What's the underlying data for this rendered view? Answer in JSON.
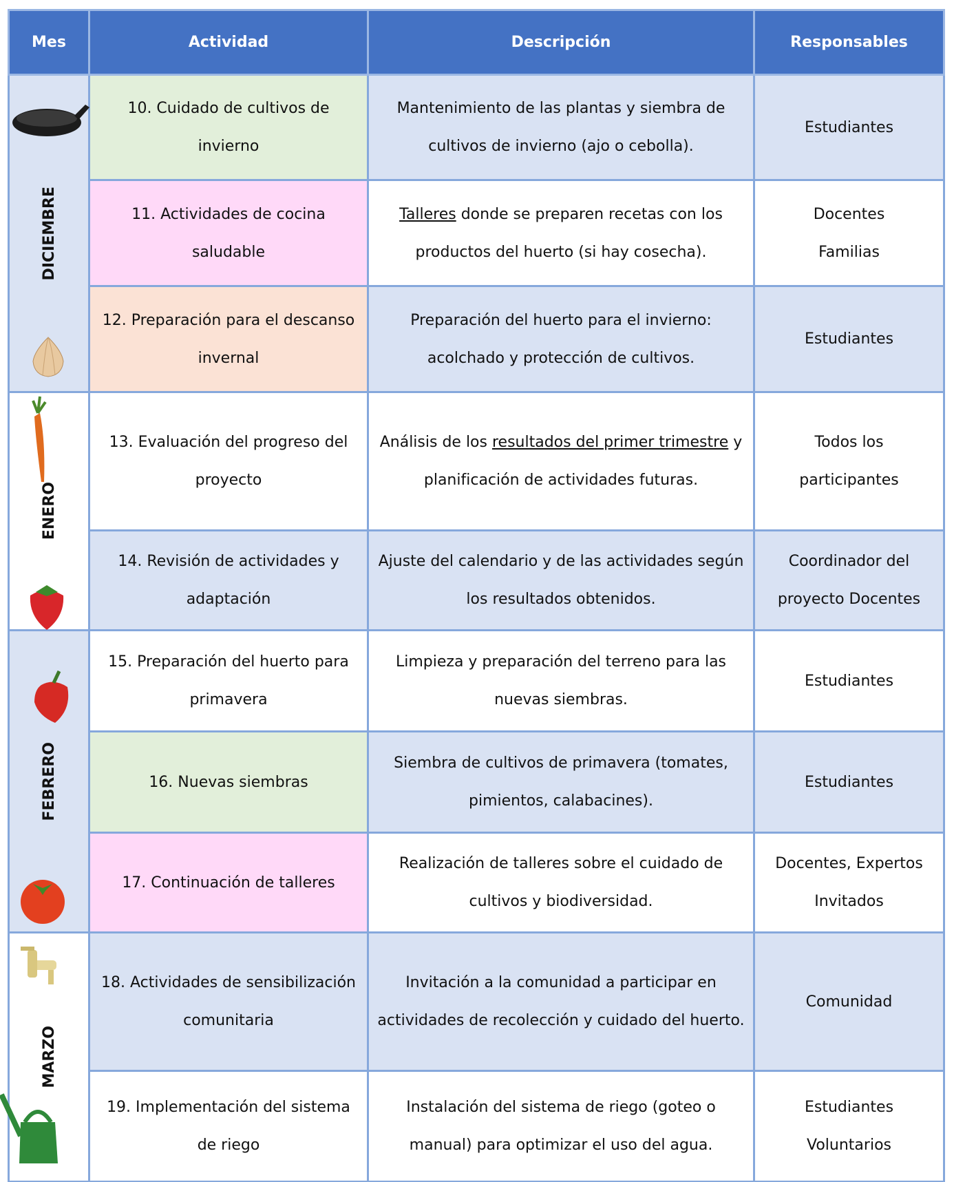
{
  "table": {
    "header": [
      "Mes",
      "Actividad",
      "Descripción",
      "Responsables"
    ],
    "months": [
      {
        "label": "DICIEMBRE",
        "rows": 3,
        "color": "#dae3f3"
      },
      {
        "label": "ENERO",
        "rows": 2,
        "color": "#ffffff"
      },
      {
        "label": "FEBRERO",
        "rows": 3,
        "color": "#dae3f3"
      },
      {
        "label": "MARZO",
        "rows": 2,
        "color": "#ffffff"
      }
    ],
    "rows": [
      {
        "activity": "10. Cuidado de cultivos de invierno",
        "activity_color": "#e2efda",
        "row_color": "#d9e2f3",
        "description": [
          {
            "text": "Mantenimiento de las plantas y siembra de cultivos de invierno (ajo o cebolla)."
          }
        ],
        "responsables": [
          "Estudiantes"
        ]
      },
      {
        "activity": "11. Actividades de cocina saludable",
        "activity_color": "#ffd9f8",
        "row_color": "#ffffff",
        "description": [
          {
            "text": "Talleres",
            "underline": true
          },
          {
            "text": " donde se preparen recetas con los productos del huerto (si hay cosecha)."
          }
        ],
        "responsables": [
          "Docentes",
          "Familias"
        ]
      },
      {
        "activity": "12. Preparación para el descanso invernal",
        "activity_color": "#fbe2d5",
        "row_color": "#d9e2f3",
        "description": [
          {
            "text": "Preparación del huerto para el invierno: acolchado y protección de cultivos."
          }
        ],
        "responsables": [
          "Estudiantes"
        ]
      },
      {
        "activity": "13. Evaluación del progreso del proyecto",
        "activity_color": "#ffffff",
        "row_color": "#ffffff",
        "description": [
          {
            "text": "Análisis de los "
          },
          {
            "text": "resultados del primer trimestre",
            "underline": true
          },
          {
            "text": " y planificación de actividades futuras."
          }
        ],
        "responsables": [
          "Todos los participantes"
        ]
      },
      {
        "activity": "14. Revisión de actividades y adaptación",
        "activity_color": "#d9e2f3",
        "row_color": "#d9e2f3",
        "description": [
          {
            "text": "Ajuste del calendario y de las actividades según los resultados obtenidos."
          }
        ],
        "responsables": [
          "Coordinador del proyecto Docentes"
        ]
      },
      {
        "activity": "15. Preparación del huerto para primavera",
        "activity_color": "#ffffff",
        "row_color": "#ffffff",
        "description": [
          {
            "text": "Limpieza y preparación del terreno para las nuevas siembras."
          }
        ],
        "responsables": [
          "Estudiantes"
        ]
      },
      {
        "activity": "16. Nuevas siembras",
        "activity_color": "#e2efda",
        "row_color": "#d9e2f3",
        "description": [
          {
            "text": "Siembra de cultivos de primavera (tomates, pimientos, calabacines)."
          }
        ],
        "responsables": [
          "Estudiantes"
        ]
      },
      {
        "activity": "17. Continuación de talleres",
        "activity_color": "#ffd9f8",
        "row_color": "#ffffff",
        "description": [
          {
            "text": "Realización de talleres sobre el cuidado de cultivos y biodiversidad."
          }
        ],
        "responsables": [
          "Docentes, Expertos Invitados"
        ]
      },
      {
        "activity": "18. Actividades de sensibilización comunitaria",
        "activity_color": "#d9e2f3",
        "row_color": "#d9e2f3",
        "description": [
          {
            "text": "Invitación a la comunidad a participar en actividades de recolección y cuidado del huerto."
          }
        ],
        "responsables": [
          "Comunidad"
        ]
      },
      {
        "activity": "19. Implementación del sistema de riego",
        "activity_color": "#ffffff",
        "row_color": "#ffffff",
        "description": [
          {
            "text": "Instalación del sistema de riego (goteo o manual) para optimizar el uso del agua."
          }
        ],
        "responsables": [
          "Estudiantes",
          "Voluntarios"
        ]
      }
    ]
  }
}
